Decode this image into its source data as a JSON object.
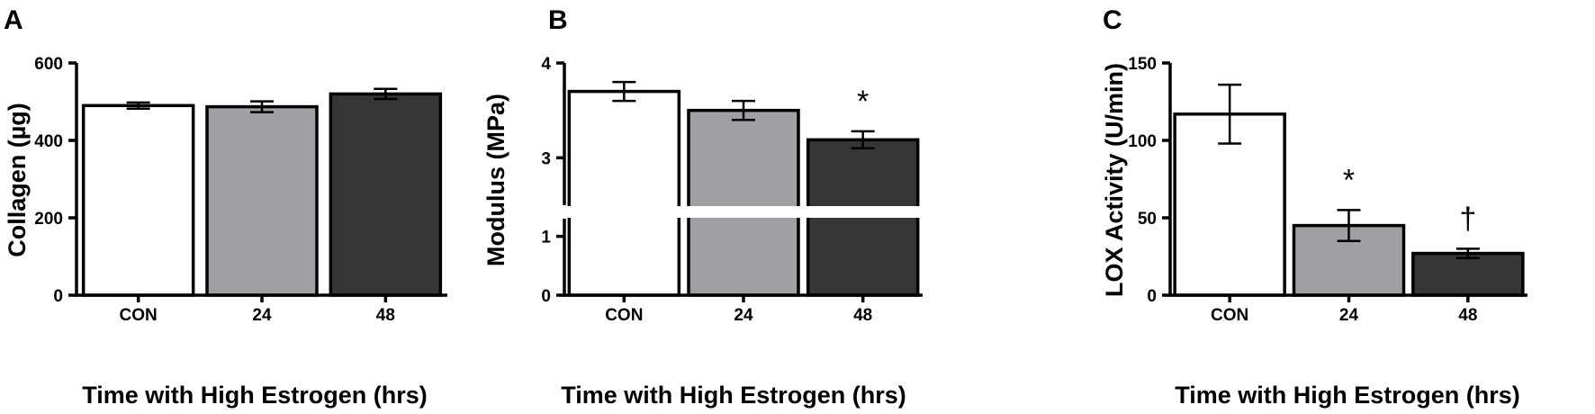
{
  "chart_data": [
    {
      "type": "bar",
      "panel": "A",
      "categories": [
        "CON",
        "24",
        "48"
      ],
      "values": [
        490,
        487,
        520
      ],
      "errors": [
        8,
        14,
        13
      ],
      "annotations": [
        "",
        "",
        ""
      ],
      "ylabel": "Collagen (µg)",
      "xlabel": "Time with High Estrogen (hrs)",
      "ylim": [
        0,
        600
      ],
      "yticks": [
        0,
        200,
        400,
        600
      ],
      "bar_colors": [
        "#ffffff",
        "#a0a0a4",
        "#363636"
      ]
    },
    {
      "type": "bar",
      "panel": "B",
      "categories": [
        "CON",
        "24",
        "48"
      ],
      "values": [
        3.7,
        3.5,
        3.19
      ],
      "errors": [
        0.1,
        0.1,
        0.09
      ],
      "annotations": [
        "",
        "",
        "*"
      ],
      "ylabel": "Modulus (MPa)",
      "xlabel": "Time with High Estrogen (hrs)",
      "axis_break": true,
      "lower_range": [
        0,
        1.3
      ],
      "upper_range": [
        2.5,
        4
      ],
      "yticks": [
        0,
        1,
        3,
        4
      ],
      "bar_colors": [
        "#ffffff",
        "#a0a0a4",
        "#363636"
      ]
    },
    {
      "type": "bar",
      "panel": "C",
      "categories": [
        "CON",
        "24",
        "48"
      ],
      "values": [
        117,
        45,
        27
      ],
      "errors": [
        19,
        10,
        3
      ],
      "annotations": [
        "",
        "*",
        "†"
      ],
      "ylabel": "LOX Activity (U/min)",
      "xlabel": "Time with High Estrogen (hrs)",
      "ylim": [
        0,
        150
      ],
      "yticks": [
        0,
        50,
        100,
        150
      ],
      "bar_colors": [
        "#ffffff",
        "#a0a0a4",
        "#363636"
      ]
    }
  ]
}
